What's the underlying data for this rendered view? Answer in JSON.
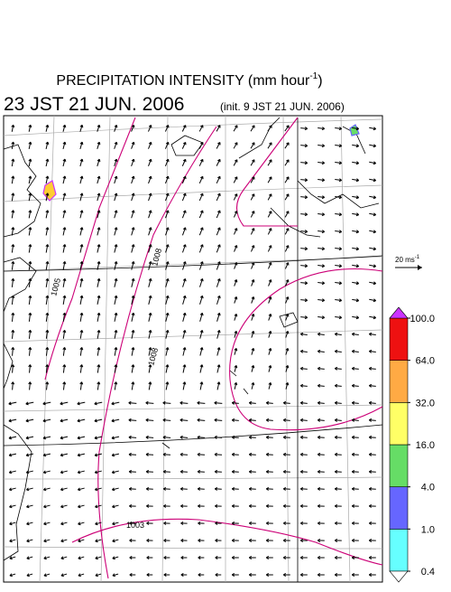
{
  "title": {
    "text": "PRECIPITATION INTENSITY (mm hour",
    "superscript": "-1",
    "suffix": ")"
  },
  "valid_time": "23 JST 21 JUN. 2006",
  "init_time": "(init. 9 JST 21 JUN. 2006)",
  "reference_vector": {
    "text": "20 ms",
    "superscript": "-1"
  },
  "contour_labels": [
    "1005",
    "1008",
    "1008",
    "1003"
  ],
  "colorbar": {
    "levels": [
      {
        "value": 0.4,
        "label": "0.4"
      },
      {
        "value": 1,
        "label": "1.0"
      },
      {
        "value": 4,
        "label": "4.0"
      },
      {
        "value": 16,
        "label": "16.0"
      },
      {
        "value": 32,
        "label": "32.0"
      },
      {
        "value": 64,
        "label": "64.0"
      },
      {
        "value": 100,
        "label": "100.0"
      }
    ],
    "colors": [
      "#66ffff",
      "#6666ff",
      "#66dd66",
      "#ffff66",
      "#ffaa44",
      "#ee1111"
    ],
    "under_color": "#ffffff",
    "over_color": "#cc33ff"
  }
}
